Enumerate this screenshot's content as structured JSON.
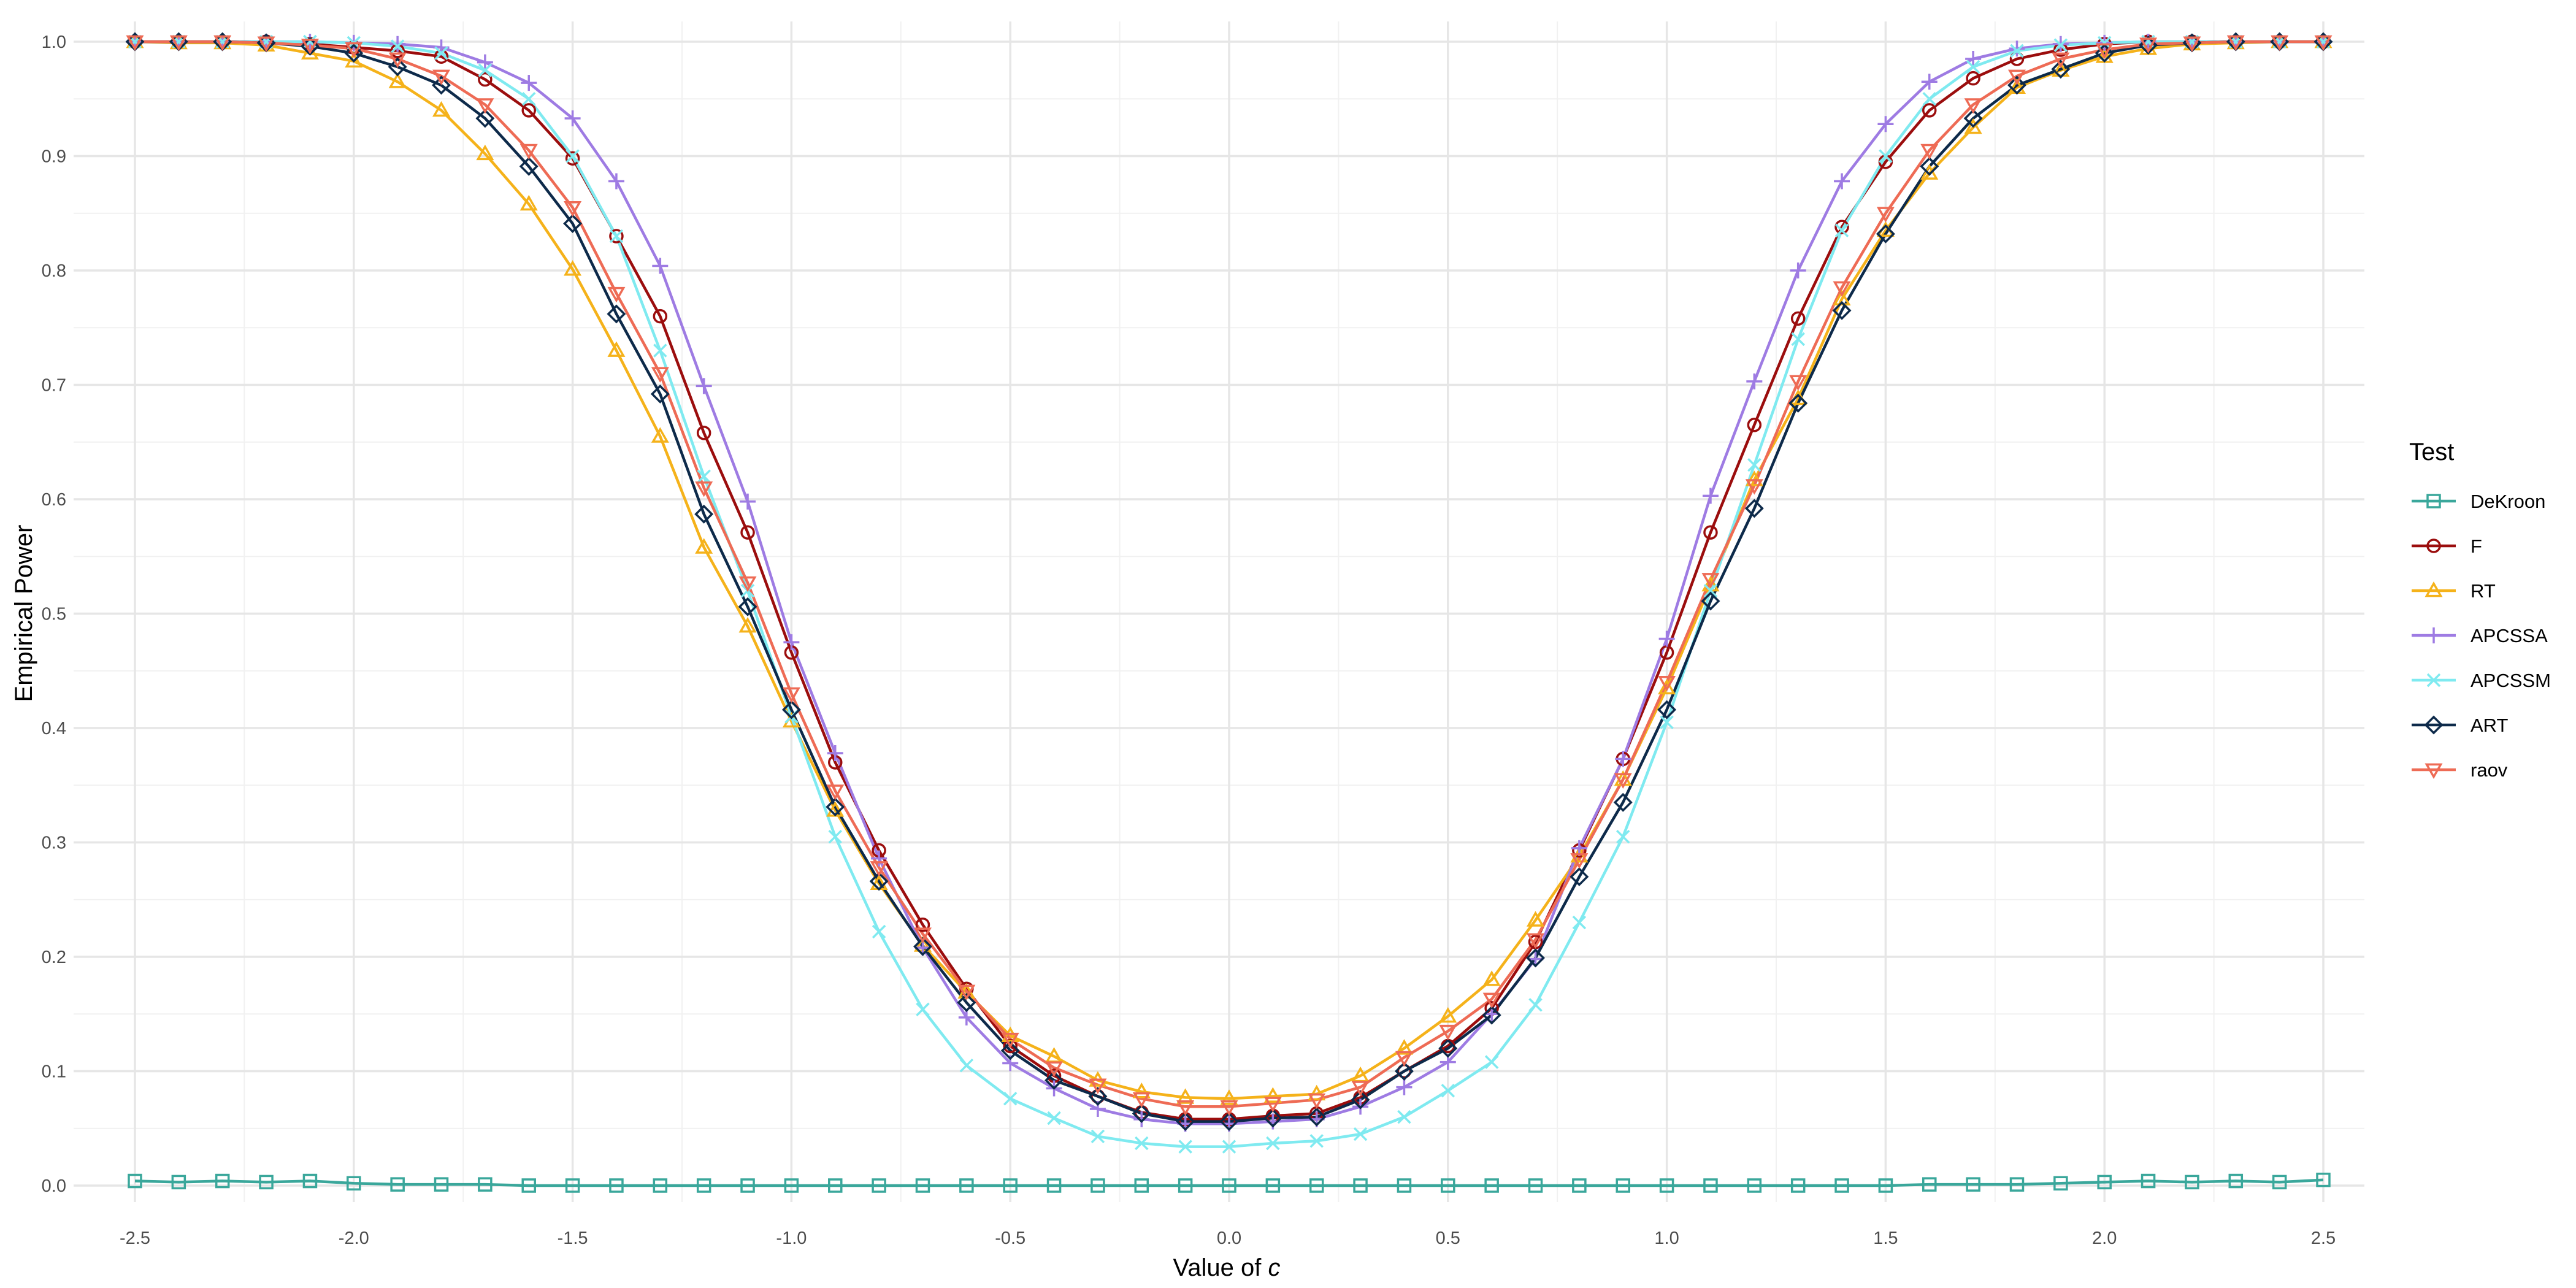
{
  "chart_data": {
    "type": "line",
    "xlabel_prefix": "Value of ",
    "xlabel_var": "c",
    "ylabel": "Empirical Power",
    "xlim": [
      -2.5,
      2.5
    ],
    "ylim": [
      0,
      1
    ],
    "x_ticks": [
      -2.5,
      -2.0,
      -1.5,
      -1.0,
      -0.5,
      0.0,
      0.5,
      1.0,
      1.5,
      2.0,
      2.5
    ],
    "x_tick_labels": [
      "-2.5",
      "-2.0",
      "-1.5",
      "-1.0",
      "-0.5",
      "0.0",
      "0.5",
      "1.0",
      "1.5",
      "2.0",
      "2.5"
    ],
    "y_ticks": [
      0.0,
      0.1,
      0.2,
      0.3,
      0.4,
      0.5,
      0.6,
      0.7,
      0.8,
      0.9,
      1.0
    ],
    "y_tick_labels": [
      "0.0",
      "0.1",
      "0.2",
      "0.3",
      "0.4",
      "0.5",
      "0.6",
      "0.7",
      "0.8",
      "0.9",
      "1.0"
    ],
    "grid": true,
    "legend_title": "Test",
    "legend_position": "right",
    "x": [
      -2.5,
      -2.4,
      -2.3,
      -2.2,
      -2.1,
      -2.0,
      -1.9,
      -1.8,
      -1.7,
      -1.6,
      -1.5,
      -1.4,
      -1.3,
      -1.2,
      -1.1,
      -1.0,
      -0.9,
      -0.8,
      -0.7,
      -0.6,
      -0.5,
      -0.4,
      -0.3,
      -0.2,
      -0.1,
      0.0,
      0.1,
      0.2,
      0.3,
      0.4,
      0.5,
      0.6,
      0.7,
      0.8,
      0.9,
      1.0,
      1.1,
      1.2,
      1.3,
      1.4,
      1.5,
      1.6,
      1.7,
      1.8,
      1.9,
      2.0,
      2.1,
      2.2,
      2.3,
      2.4,
      2.5
    ],
    "series": [
      {
        "name": "DeKroon",
        "color": "#3aa79b",
        "marker": "square",
        "values": [
          0.004,
          0.003,
          0.004,
          0.003,
          0.004,
          0.002,
          0.001,
          0.001,
          0.001,
          0.0,
          0.0,
          0.0,
          0.0,
          0.0,
          0.0,
          0.0,
          0.0,
          0.0,
          0.0,
          0.0,
          0.0,
          0.0,
          0.0,
          0.0,
          0.0,
          0.0,
          0.0,
          0.0,
          0.0,
          0.0,
          0.0,
          0.0,
          0.0,
          0.0,
          0.0,
          0.0,
          0.0,
          0.0,
          0.0,
          0.0,
          0.0,
          0.001,
          0.001,
          0.001,
          0.002,
          0.003,
          0.004,
          0.003,
          0.004,
          0.003,
          0.005
        ]
      },
      {
        "name": "F",
        "color": "#9b0d0d",
        "marker": "circle",
        "values": [
          1.0,
          1.0,
          1.0,
          1.0,
          0.998,
          0.995,
          0.992,
          0.987,
          0.967,
          0.94,
          0.898,
          0.83,
          0.76,
          0.658,
          0.571,
          0.466,
          0.37,
          0.293,
          0.228,
          0.172,
          0.122,
          0.096,
          0.078,
          0.064,
          0.058,
          0.058,
          0.061,
          0.063,
          0.077,
          0.1,
          0.122,
          0.155,
          0.213,
          0.293,
          0.373,
          0.466,
          0.571,
          0.665,
          0.758,
          0.838,
          0.895,
          0.94,
          0.968,
          0.985,
          0.993,
          0.998,
          1.0,
          1.0,
          1.0,
          1.0,
          1.0
        ]
      },
      {
        "name": "RT",
        "color": "#f5b21a",
        "marker": "triangle",
        "values": [
          1.0,
          0.999,
          0.999,
          0.997,
          0.99,
          0.983,
          0.965,
          0.94,
          0.902,
          0.858,
          0.801,
          0.73,
          0.655,
          0.558,
          0.489,
          0.406,
          0.328,
          0.264,
          0.21,
          0.169,
          0.131,
          0.113,
          0.092,
          0.082,
          0.077,
          0.076,
          0.078,
          0.08,
          0.096,
          0.12,
          0.148,
          0.18,
          0.232,
          0.288,
          0.355,
          0.435,
          0.525,
          0.617,
          0.688,
          0.775,
          0.835,
          0.885,
          0.925,
          0.96,
          0.975,
          0.987,
          0.994,
          0.998,
          0.999,
          1.0,
          1.0
        ]
      },
      {
        "name": "APCSSA",
        "color": "#9e7be3",
        "marker": "plus",
        "values": [
          1.0,
          1.0,
          1.0,
          1.0,
          1.0,
          0.999,
          0.998,
          0.995,
          0.982,
          0.964,
          0.933,
          0.878,
          0.804,
          0.699,
          0.598,
          0.475,
          0.378,
          0.286,
          0.208,
          0.147,
          0.107,
          0.085,
          0.067,
          0.058,
          0.054,
          0.054,
          0.056,
          0.058,
          0.069,
          0.086,
          0.108,
          0.15,
          0.198,
          0.295,
          0.373,
          0.478,
          0.603,
          0.703,
          0.8,
          0.878,
          0.928,
          0.965,
          0.985,
          0.994,
          0.998,
          0.999,
          1.0,
          1.0,
          1.0,
          1.0,
          1.0
        ]
      },
      {
        "name": "APCSSM",
        "color": "#7feaf0",
        "marker": "cross",
        "values": [
          1.0,
          1.0,
          1.0,
          1.0,
          1.0,
          0.999,
          0.996,
          0.99,
          0.975,
          0.95,
          0.9,
          0.83,
          0.73,
          0.62,
          0.52,
          0.41,
          0.305,
          0.222,
          0.154,
          0.105,
          0.076,
          0.059,
          0.043,
          0.037,
          0.034,
          0.034,
          0.037,
          0.039,
          0.045,
          0.06,
          0.083,
          0.108,
          0.158,
          0.23,
          0.305,
          0.405,
          0.52,
          0.63,
          0.74,
          0.835,
          0.9,
          0.95,
          0.978,
          0.992,
          0.997,
          0.999,
          1.0,
          1.0,
          1.0,
          1.0,
          1.0
        ]
      },
      {
        "name": "ART",
        "color": "#0d2a4a",
        "marker": "diamond",
        "values": [
          1.0,
          1.0,
          1.0,
          0.999,
          0.996,
          0.99,
          0.978,
          0.962,
          0.933,
          0.891,
          0.841,
          0.762,
          0.692,
          0.587,
          0.506,
          0.416,
          0.331,
          0.266,
          0.209,
          0.16,
          0.118,
          0.092,
          0.078,
          0.063,
          0.056,
          0.056,
          0.059,
          0.06,
          0.075,
          0.1,
          0.12,
          0.149,
          0.199,
          0.27,
          0.335,
          0.416,
          0.511,
          0.592,
          0.684,
          0.765,
          0.832,
          0.891,
          0.933,
          0.962,
          0.976,
          0.99,
          0.997,
          0.999,
          1.0,
          1.0,
          1.0
        ]
      },
      {
        "name": "raov",
        "color": "#ee6b55",
        "marker": "triangle-down",
        "values": [
          1.0,
          1.0,
          1.0,
          0.999,
          0.997,
          0.994,
          0.985,
          0.97,
          0.945,
          0.905,
          0.855,
          0.78,
          0.71,
          0.61,
          0.527,
          0.43,
          0.345,
          0.278,
          0.22,
          0.17,
          0.128,
          0.103,
          0.088,
          0.076,
          0.069,
          0.069,
          0.072,
          0.075,
          0.086,
          0.112,
          0.135,
          0.163,
          0.215,
          0.285,
          0.355,
          0.44,
          0.53,
          0.612,
          0.703,
          0.785,
          0.85,
          0.905,
          0.945,
          0.97,
          0.985,
          0.993,
          0.998,
          0.999,
          1.0,
          1.0,
          1.0
        ]
      }
    ]
  }
}
